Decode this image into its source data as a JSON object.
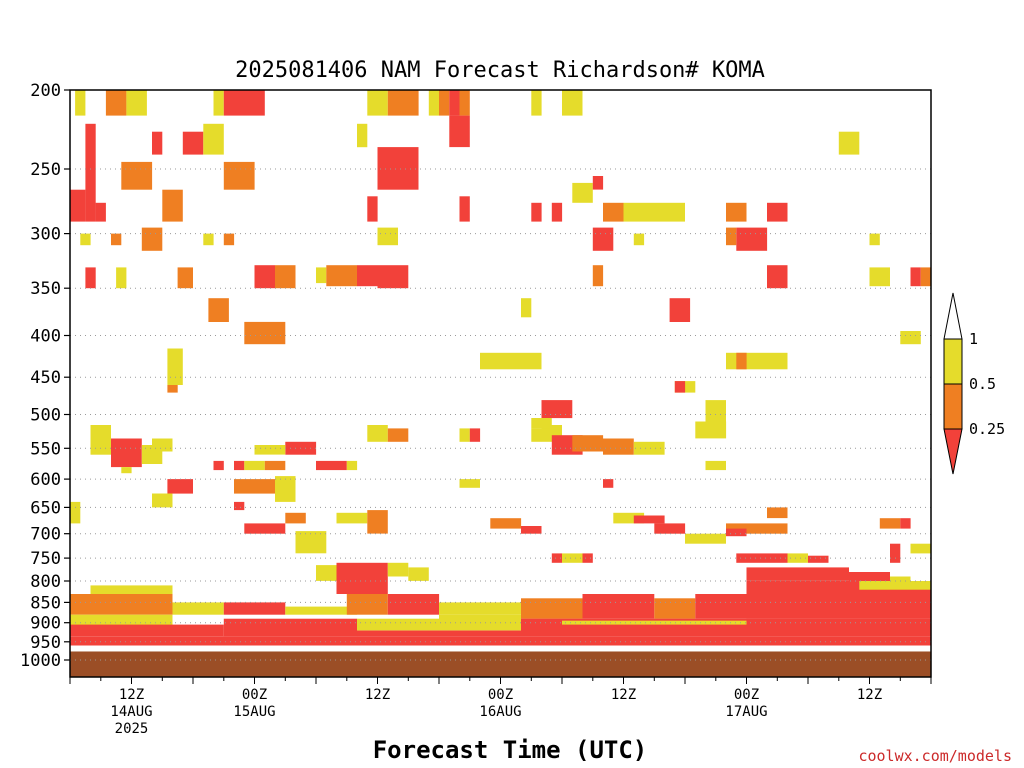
{
  "chart_data": {
    "type": "heatmap",
    "title": "2025081406 NAM Forecast Richardson# KOMA",
    "xlabel": "Forecast Time (UTC)",
    "ylabel": "",
    "y_axis": {
      "scale": "log-pressure",
      "range": [
        1000,
        200
      ],
      "ticks": [
        200,
        250,
        300,
        350,
        400,
        450,
        500,
        550,
        600,
        650,
        700,
        750,
        800,
        850,
        900,
        950,
        1000
      ]
    },
    "x_axis": {
      "range_hours": [
        0,
        84
      ],
      "ticks": [
        {
          "hour": 6,
          "line1": "12Z",
          "line2": "14AUG",
          "line3": "2025"
        },
        {
          "hour": 18,
          "line1": "00Z",
          "line2": "15AUG",
          "line3": ""
        },
        {
          "hour": 30,
          "line1": "12Z",
          "line2": "",
          "line3": ""
        },
        {
          "hour": 42,
          "line1": "00Z",
          "line2": "16AUG",
          "line3": ""
        },
        {
          "hour": 54,
          "line1": "12Z",
          "line2": "",
          "line3": ""
        },
        {
          "hour": 66,
          "line1": "00Z",
          "line2": "17AUG",
          "line3": ""
        },
        {
          "hour": 78,
          "line1": "12Z",
          "line2": "",
          "line3": ""
        }
      ]
    },
    "grid": "dotted horizontal lines at pressure ticks",
    "legend": {
      "placement": "right",
      "levels": [
        "1",
        "0.5",
        "0.25"
      ],
      "classes": [
        {
          "range": "< 0.25",
          "color": "#f2413a"
        },
        {
          "range": "0.25-0.5",
          "color": "#ef7f22"
        },
        {
          "range": "0.5-1",
          "color": "#e5dc2b"
        },
        {
          "range": "> 1",
          "color": "#ffffff"
        }
      ]
    },
    "surface_color": "#9b4e26",
    "cells": [
      {
        "h0": 0.5,
        "h1": 1.5,
        "p0": 200,
        "p1": 215,
        "c": "y"
      },
      {
        "h0": 3.5,
        "h1": 5.5,
        "p0": 200,
        "p1": 215,
        "c": "o"
      },
      {
        "h0": 5.5,
        "h1": 7.5,
        "p0": 200,
        "p1": 215,
        "c": "y"
      },
      {
        "h0": 14,
        "h1": 15,
        "p0": 200,
        "p1": 215,
        "c": "y"
      },
      {
        "h0": 15,
        "h1": 19,
        "p0": 200,
        "p1": 215,
        "c": "r"
      },
      {
        "h0": 29,
        "h1": 31,
        "p0": 200,
        "p1": 215,
        "c": "y"
      },
      {
        "h0": 31,
        "h1": 34,
        "p0": 200,
        "p1": 215,
        "c": "o"
      },
      {
        "h0": 35,
        "h1": 36,
        "p0": 200,
        "p1": 215,
        "c": "y"
      },
      {
        "h0": 36,
        "h1": 37,
        "p0": 200,
        "p1": 215,
        "c": "o"
      },
      {
        "h0": 37,
        "h1": 38,
        "p0": 200,
        "p1": 215,
        "c": "r"
      },
      {
        "h0": 38,
        "h1": 39,
        "p0": 200,
        "p1": 215,
        "c": "o"
      },
      {
        "h0": 45,
        "h1": 46,
        "p0": 200,
        "p1": 215,
        "c": "y"
      },
      {
        "h0": 48,
        "h1": 50,
        "p0": 200,
        "p1": 215,
        "c": "y"
      },
      {
        "h0": 1.5,
        "h1": 2.5,
        "p0": 220,
        "p1": 290,
        "c": "r"
      },
      {
        "h0": 0,
        "h1": 1.5,
        "p0": 265,
        "p1": 290,
        "c": "r"
      },
      {
        "h0": 2.5,
        "h1": 3.5,
        "p0": 275,
        "p1": 290,
        "c": "r"
      },
      {
        "h0": 5,
        "h1": 8,
        "p0": 245,
        "p1": 265,
        "c": "o"
      },
      {
        "h0": 8,
        "h1": 9,
        "p0": 225,
        "p1": 240,
        "c": "r"
      },
      {
        "h0": 9,
        "h1": 11,
        "p0": 265,
        "p1": 290,
        "c": "o"
      },
      {
        "h0": 11,
        "h1": 13,
        "p0": 225,
        "p1": 240,
        "c": "r"
      },
      {
        "h0": 13,
        "h1": 15,
        "p0": 220,
        "p1": 240,
        "c": "y"
      },
      {
        "h0": 15,
        "h1": 18,
        "p0": 245,
        "p1": 265,
        "c": "o"
      },
      {
        "h0": 28,
        "h1": 29,
        "p0": 220,
        "p1": 235,
        "c": "y"
      },
      {
        "h0": 30,
        "h1": 34,
        "p0": 235,
        "p1": 265,
        "c": "r"
      },
      {
        "h0": 29,
        "h1": 30,
        "p0": 270,
        "p1": 290,
        "c": "r"
      },
      {
        "h0": 37,
        "h1": 39,
        "p0": 215,
        "p1": 235,
        "c": "r"
      },
      {
        "h0": 38,
        "h1": 39,
        "p0": 270,
        "p1": 290,
        "c": "r"
      },
      {
        "h0": 45,
        "h1": 46,
        "p0": 275,
        "p1": 290,
        "c": "r"
      },
      {
        "h0": 47,
        "h1": 48,
        "p0": 275,
        "p1": 290,
        "c": "r"
      },
      {
        "h0": 49,
        "h1": 51,
        "p0": 260,
        "p1": 275,
        "c": "y"
      },
      {
        "h0": 51,
        "h1": 52,
        "p0": 255,
        "p1": 265,
        "c": "r"
      },
      {
        "h0": 52,
        "h1": 54,
        "p0": 275,
        "p1": 290,
        "c": "o"
      },
      {
        "h0": 54,
        "h1": 60,
        "p0": 275,
        "p1": 290,
        "c": "y"
      },
      {
        "h0": 64,
        "h1": 66,
        "p0": 275,
        "p1": 290,
        "c": "o"
      },
      {
        "h0": 68,
        "h1": 70,
        "p0": 275,
        "p1": 290,
        "c": "r"
      },
      {
        "h0": 75,
        "h1": 77,
        "p0": 225,
        "p1": 240,
        "c": "y"
      },
      {
        "h0": 1,
        "h1": 2,
        "p0": 300,
        "p1": 310,
        "c": "y"
      },
      {
        "h0": 4,
        "h1": 5,
        "p0": 300,
        "p1": 310,
        "c": "o"
      },
      {
        "h0": 7,
        "h1": 9,
        "p0": 295,
        "p1": 315,
        "c": "o"
      },
      {
        "h0": 13,
        "h1": 14,
        "p0": 300,
        "p1": 310,
        "c": "y"
      },
      {
        "h0": 15,
        "h1": 16,
        "p0": 300,
        "p1": 310,
        "c": "o"
      },
      {
        "h0": 30,
        "h1": 32,
        "p0": 295,
        "p1": 310,
        "c": "y"
      },
      {
        "h0": 51,
        "h1": 53,
        "p0": 295,
        "p1": 315,
        "c": "r"
      },
      {
        "h0": 55,
        "h1": 56,
        "p0": 300,
        "p1": 310,
        "c": "y"
      },
      {
        "h0": 65,
        "h1": 68,
        "p0": 295,
        "p1": 315,
        "c": "r"
      },
      {
        "h0": 64,
        "h1": 65,
        "p0": 295,
        "p1": 310,
        "c": "o"
      },
      {
        "h0": 78,
        "h1": 79,
        "p0": 300,
        "p1": 310,
        "c": "y"
      },
      {
        "h0": 1.5,
        "h1": 2.5,
        "p0": 330,
        "p1": 350,
        "c": "r"
      },
      {
        "h0": 4.5,
        "h1": 5.5,
        "p0": 330,
        "p1": 350,
        "c": "y"
      },
      {
        "h0": 10.5,
        "h1": 12,
        "p0": 330,
        "p1": 350,
        "c": "o"
      },
      {
        "h0": 18,
        "h1": 20,
        "p0": 328,
        "p1": 350,
        "c": "r"
      },
      {
        "h0": 20,
        "h1": 22,
        "p0": 328,
        "p1": 350,
        "c": "o"
      },
      {
        "h0": 24,
        "h1": 25,
        "p0": 330,
        "p1": 345,
        "c": "y"
      },
      {
        "h0": 25,
        "h1": 28,
        "p0": 328,
        "p1": 348,
        "c": "o"
      },
      {
        "h0": 28,
        "h1": 30,
        "p0": 328,
        "p1": 348,
        "c": "r"
      },
      {
        "h0": 30,
        "h1": 33,
        "p0": 328,
        "p1": 350,
        "c": "r"
      },
      {
        "h0": 51,
        "h1": 52,
        "p0": 328,
        "p1": 348,
        "c": "o"
      },
      {
        "h0": 68,
        "h1": 70,
        "p0": 328,
        "p1": 350,
        "c": "r"
      },
      {
        "h0": 78,
        "h1": 80,
        "p0": 330,
        "p1": 348,
        "c": "y"
      },
      {
        "h0": 82,
        "h1": 83,
        "p0": 330,
        "p1": 348,
        "c": "r"
      },
      {
        "h0": 83,
        "h1": 84,
        "p0": 330,
        "p1": 348,
        "c": "o"
      },
      {
        "h0": 13.5,
        "h1": 15.5,
        "p0": 360,
        "p1": 385,
        "c": "o"
      },
      {
        "h0": 58.5,
        "h1": 60.5,
        "p0": 360,
        "p1": 385,
        "c": "r"
      },
      {
        "h0": 44,
        "h1": 45,
        "p0": 360,
        "p1": 380,
        "c": "y"
      },
      {
        "h0": 17,
        "h1": 21,
        "p0": 385,
        "p1": 410,
        "c": "o"
      },
      {
        "h0": 81,
        "h1": 83,
        "p0": 395,
        "p1": 410,
        "c": "y"
      },
      {
        "h0": 9.5,
        "h1": 11,
        "p0": 415,
        "p1": 460,
        "c": "y"
      },
      {
        "h0": 9.5,
        "h1": 10.5,
        "p0": 460,
        "p1": 470,
        "c": "o"
      },
      {
        "h0": 40,
        "h1": 46,
        "p0": 420,
        "p1": 440,
        "c": "y"
      },
      {
        "h0": 64,
        "h1": 66,
        "p0": 420,
        "p1": 440,
        "c": "y"
      },
      {
        "h0": 66,
        "h1": 70,
        "p0": 420,
        "p1": 440,
        "c": "y"
      },
      {
        "h0": 65,
        "h1": 66,
        "p0": 420,
        "p1": 440,
        "c": "o"
      },
      {
        "h0": 59,
        "h1": 61,
        "p0": 455,
        "p1": 470,
        "c": "y"
      },
      {
        "h0": 59,
        "h1": 60,
        "p0": 455,
        "p1": 470,
        "c": "r"
      },
      {
        "h0": 46,
        "h1": 49,
        "p0": 480,
        "p1": 505,
        "c": "r"
      },
      {
        "h0": 62,
        "h1": 64,
        "p0": 480,
        "p1": 530,
        "c": "y"
      },
      {
        "h0": 2,
        "h1": 4,
        "p0": 515,
        "p1": 560,
        "c": "y"
      },
      {
        "h0": 4,
        "h1": 7,
        "p0": 535,
        "p1": 580,
        "c": "r"
      },
      {
        "h0": 7,
        "h1": 9,
        "p0": 545,
        "p1": 575,
        "c": "y"
      },
      {
        "h0": 8,
        "h1": 10,
        "p0": 535,
        "p1": 555,
        "c": "y"
      },
      {
        "h0": 21,
        "h1": 24,
        "p0": 540,
        "p1": 560,
        "c": "r"
      },
      {
        "h0": 18,
        "h1": 21,
        "p0": 545,
        "p1": 560,
        "c": "y"
      },
      {
        "h0": 29,
        "h1": 31,
        "p0": 515,
        "p1": 540,
        "c": "y"
      },
      {
        "h0": 31,
        "h1": 33,
        "p0": 520,
        "p1": 540,
        "c": "o"
      },
      {
        "h0": 38,
        "h1": 39,
        "p0": 520,
        "p1": 540,
        "c": "y"
      },
      {
        "h0": 39,
        "h1": 40,
        "p0": 520,
        "p1": 540,
        "c": "r"
      },
      {
        "h0": 45,
        "h1": 46,
        "p0": 520,
        "p1": 540,
        "c": "y"
      },
      {
        "h0": 46,
        "h1": 48,
        "p0": 515,
        "p1": 540,
        "c": "y"
      },
      {
        "h0": 47,
        "h1": 50,
        "p0": 530,
        "p1": 560,
        "c": "r"
      },
      {
        "h0": 49,
        "h1": 52,
        "p0": 530,
        "p1": 555,
        "c": "o"
      },
      {
        "h0": 52,
        "h1": 55,
        "p0": 535,
        "p1": 560,
        "c": "o"
      },
      {
        "h0": 55,
        "h1": 58,
        "p0": 540,
        "p1": 560,
        "c": "y"
      },
      {
        "h0": 45,
        "h1": 47,
        "p0": 505,
        "p1": 520,
        "c": "y"
      },
      {
        "h0": 61,
        "h1": 64,
        "p0": 510,
        "p1": 535,
        "c": "y"
      },
      {
        "h0": 5,
        "h1": 6,
        "p0": 580,
        "p1": 590,
        "c": "y"
      },
      {
        "h0": 14,
        "h1": 15,
        "p0": 570,
        "p1": 585,
        "c": "r"
      },
      {
        "h0": 16,
        "h1": 17,
        "p0": 570,
        "p1": 585,
        "c": "r"
      },
      {
        "h0": 17,
        "h1": 19,
        "p0": 570,
        "p1": 585,
        "c": "y"
      },
      {
        "h0": 19,
        "h1": 21,
        "p0": 570,
        "p1": 585,
        "c": "o"
      },
      {
        "h0": 24,
        "h1": 27,
        "p0": 570,
        "p1": 585,
        "c": "r"
      },
      {
        "h0": 27,
        "h1": 28,
        "p0": 570,
        "p1": 585,
        "c": "y"
      },
      {
        "h0": 62,
        "h1": 64,
        "p0": 570,
        "p1": 585,
        "c": "y"
      },
      {
        "h0": 9.5,
        "h1": 12,
        "p0": 600,
        "p1": 625,
        "c": "r"
      },
      {
        "h0": 16,
        "h1": 20,
        "p0": 600,
        "p1": 625,
        "c": "o"
      },
      {
        "h0": 20,
        "h1": 22,
        "p0": 595,
        "p1": 640,
        "c": "y"
      },
      {
        "h0": 38,
        "h1": 40,
        "p0": 600,
        "p1": 615,
        "c": "y"
      },
      {
        "h0": 52,
        "h1": 53,
        "p0": 600,
        "p1": 615,
        "c": "r"
      },
      {
        "h0": 8,
        "h1": 10,
        "p0": 625,
        "p1": 650,
        "c": "y"
      },
      {
        "h0": 0,
        "h1": 1,
        "p0": 640,
        "p1": 680,
        "c": "y"
      },
      {
        "h0": 16,
        "h1": 17,
        "p0": 640,
        "p1": 655,
        "c": "r"
      },
      {
        "h0": 26,
        "h1": 29,
        "p0": 660,
        "p1": 680,
        "c": "y"
      },
      {
        "h0": 29,
        "h1": 31,
        "p0": 655,
        "p1": 700,
        "c": "o"
      },
      {
        "h0": 17,
        "h1": 21,
        "p0": 680,
        "p1": 700,
        "c": "r"
      },
      {
        "h0": 21,
        "h1": 23,
        "p0": 660,
        "p1": 680,
        "c": "o"
      },
      {
        "h0": 22,
        "h1": 25,
        "p0": 695,
        "p1": 740,
        "c": "y"
      },
      {
        "h0": 41,
        "h1": 44,
        "p0": 670,
        "p1": 690,
        "c": "o"
      },
      {
        "h0": 44,
        "h1": 46,
        "p0": 685,
        "p1": 700,
        "c": "r"
      },
      {
        "h0": 53,
        "h1": 56,
        "p0": 660,
        "p1": 680,
        "c": "y"
      },
      {
        "h0": 55,
        "h1": 58,
        "p0": 665,
        "p1": 680,
        "c": "r"
      },
      {
        "h0": 57,
        "h1": 60,
        "p0": 680,
        "p1": 700,
        "c": "r"
      },
      {
        "h0": 60,
        "h1": 64,
        "p0": 700,
        "p1": 720,
        "c": "y"
      },
      {
        "h0": 68,
        "h1": 70,
        "p0": 650,
        "p1": 670,
        "c": "o"
      },
      {
        "h0": 64,
        "h1": 70,
        "p0": 680,
        "p1": 700,
        "c": "o"
      },
      {
        "h0": 64,
        "h1": 66,
        "p0": 690,
        "p1": 705,
        "c": "r"
      },
      {
        "h0": 79,
        "h1": 81,
        "p0": 670,
        "p1": 690,
        "c": "o"
      },
      {
        "h0": 81,
        "h1": 82,
        "p0": 670,
        "p1": 690,
        "c": "r"
      },
      {
        "h0": 47,
        "h1": 48,
        "p0": 740,
        "p1": 760,
        "c": "r"
      },
      {
        "h0": 48,
        "h1": 50,
        "p0": 740,
        "p1": 760,
        "c": "y"
      },
      {
        "h0": 50,
        "h1": 51,
        "p0": 740,
        "p1": 760,
        "c": "r"
      },
      {
        "h0": 65,
        "h1": 70,
        "p0": 740,
        "p1": 760,
        "c": "r"
      },
      {
        "h0": 70,
        "h1": 72,
        "p0": 740,
        "p1": 760,
        "c": "y"
      },
      {
        "h0": 72,
        "h1": 74,
        "p0": 745,
        "p1": 760,
        "c": "r"
      },
      {
        "h0": 80,
        "h1": 81,
        "p0": 720,
        "p1": 760,
        "c": "r"
      },
      {
        "h0": 82,
        "h1": 84,
        "p0": 720,
        "p1": 740,
        "c": "y"
      },
      {
        "h0": 24,
        "h1": 28,
        "p0": 765,
        "p1": 800,
        "c": "y"
      },
      {
        "h0": 26,
        "h1": 31,
        "p0": 760,
        "p1": 830,
        "c": "r"
      },
      {
        "h0": 31,
        "h1": 33,
        "p0": 760,
        "p1": 790,
        "c": "y"
      },
      {
        "h0": 33,
        "h1": 35,
        "p0": 770,
        "p1": 800,
        "c": "y"
      },
      {
        "h0": 66,
        "h1": 76,
        "p0": 770,
        "p1": 800,
        "c": "r"
      },
      {
        "h0": 76,
        "h1": 80,
        "p0": 780,
        "p1": 800,
        "c": "r"
      },
      {
        "h0": 80,
        "h1": 82,
        "p0": 790,
        "p1": 800,
        "c": "y"
      },
      {
        "h0": 0,
        "h1": 10,
        "p0": 830,
        "p1": 880,
        "c": "o"
      },
      {
        "h0": 2,
        "h1": 10,
        "p0": 810,
        "p1": 830,
        "c": "y"
      },
      {
        "h0": 10,
        "h1": 15,
        "p0": 850,
        "p1": 880,
        "c": "y"
      },
      {
        "h0": 15,
        "h1": 21,
        "p0": 850,
        "p1": 880,
        "c": "r"
      },
      {
        "h0": 21,
        "h1": 28,
        "p0": 860,
        "p1": 880,
        "c": "y"
      },
      {
        "h0": 27,
        "h1": 31,
        "p0": 830,
        "p1": 880,
        "c": "o"
      },
      {
        "h0": 31,
        "h1": 36,
        "p0": 830,
        "p1": 880,
        "c": "r"
      },
      {
        "h0": 36,
        "h1": 44,
        "p0": 850,
        "p1": 880,
        "c": "y"
      },
      {
        "h0": 44,
        "h1": 50,
        "p0": 840,
        "p1": 890,
        "c": "o"
      },
      {
        "h0": 50,
        "h1": 57,
        "p0": 830,
        "p1": 890,
        "c": "r"
      },
      {
        "h0": 57,
        "h1": 61,
        "p0": 840,
        "p1": 890,
        "c": "o"
      },
      {
        "h0": 61,
        "h1": 66,
        "p0": 830,
        "p1": 890,
        "c": "r"
      },
      {
        "h0": 66,
        "h1": 84,
        "p0": 800,
        "p1": 890,
        "c": "r"
      },
      {
        "h0": 77,
        "h1": 84,
        "p0": 800,
        "p1": 820,
        "c": "y"
      },
      {
        "h0": 0,
        "h1": 10,
        "p0": 880,
        "p1": 930,
        "c": "y"
      },
      {
        "h0": 0,
        "h1": 15,
        "p0": 905,
        "p1": 935,
        "c": "r"
      },
      {
        "h0": 15,
        "h1": 28,
        "p0": 890,
        "p1": 935,
        "c": "r"
      },
      {
        "h0": 28,
        "h1": 36,
        "p0": 890,
        "p1": 920,
        "c": "y"
      },
      {
        "h0": 28,
        "h1": 44,
        "p0": 920,
        "p1": 935,
        "c": "r"
      },
      {
        "h0": 36,
        "h1": 44,
        "p0": 880,
        "p1": 920,
        "c": "y"
      },
      {
        "h0": 44,
        "h1": 84,
        "p0": 890,
        "p1": 935,
        "c": "r"
      },
      {
        "h0": 48,
        "h1": 66,
        "p0": 895,
        "p1": 905,
        "c": "y"
      },
      {
        "h0": 0,
        "h1": 84,
        "p0": 935,
        "p1": 960,
        "c": "r"
      }
    ]
  },
  "credit": "coolwx.com/models"
}
